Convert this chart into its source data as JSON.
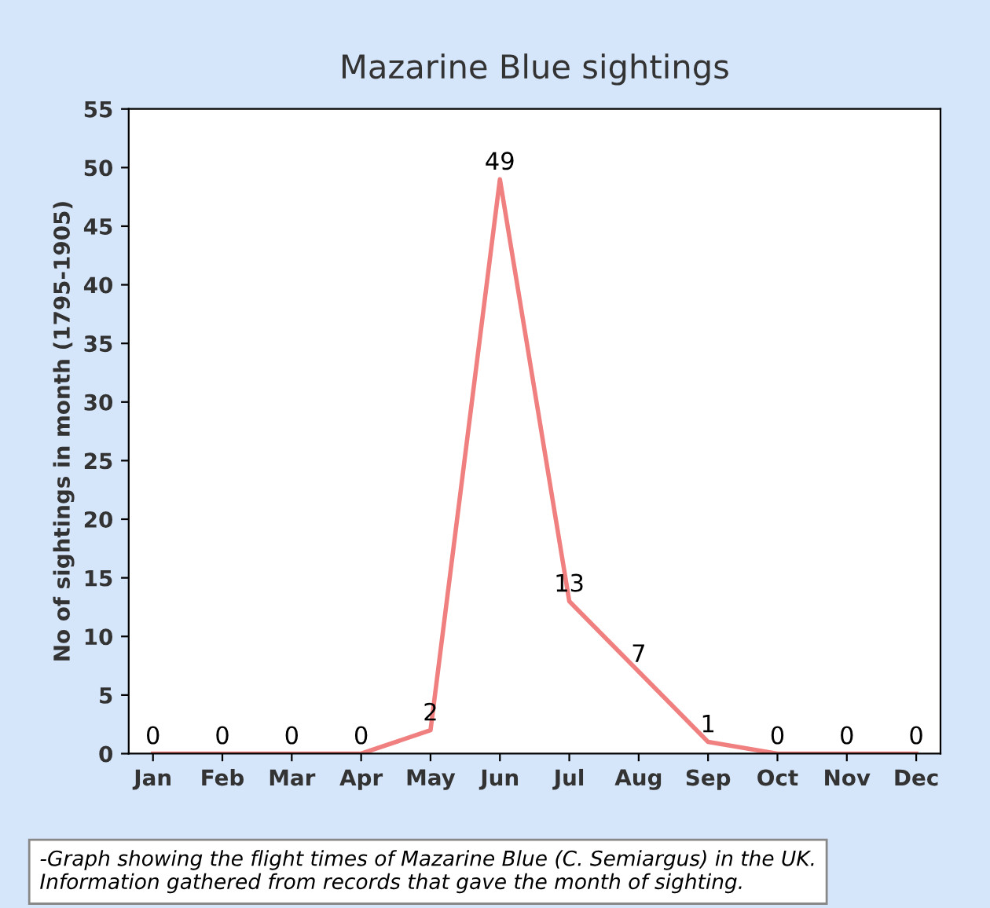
{
  "chart_data": {
    "type": "line",
    "title": "Mazarine Blue sightings",
    "ylabel": "No of sightings in month (1795-1905)",
    "categories": [
      "Jan",
      "Feb",
      "Mar",
      "Apr",
      "May",
      "Jun",
      "Jul",
      "Aug",
      "Sep",
      "Oct",
      "Nov",
      "Dec"
    ],
    "series": [
      {
        "color": "#f07f7f",
        "values": [
          0,
          0,
          0,
          0,
          2,
          49,
          13,
          7,
          1,
          0,
          0,
          0
        ]
      }
    ],
    "ylim": [
      0,
      55
    ],
    "yticks": [
      0,
      5,
      10,
      15,
      20,
      25,
      30,
      35,
      40,
      45,
      50,
      55
    ],
    "data_labels": true,
    "grid": false,
    "legend": false,
    "marker": "none",
    "line_style": "solid",
    "annotations": [
      "-Graph showing the flight times of Mazarine Blue (C. Semiargus) in the UK.\nInformation gathered from records that gave the month of sighting."
    ]
  }
}
